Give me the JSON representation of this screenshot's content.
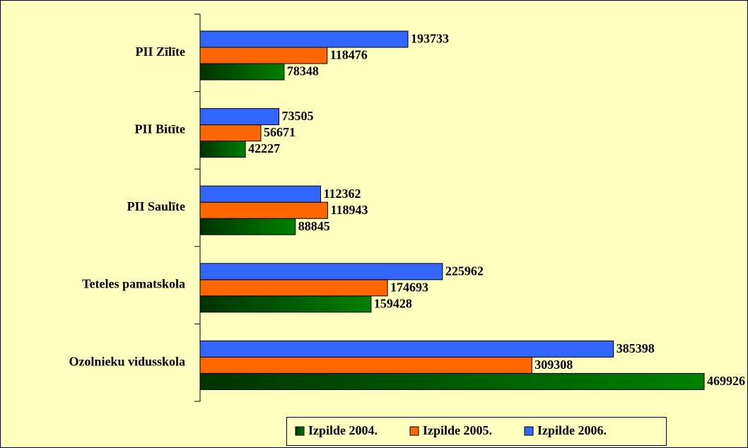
{
  "chart_data": {
    "type": "bar",
    "orientation": "horizontal",
    "categories": [
      "PII Zīlīte",
      "PII Bitīte",
      "PII Saulīte",
      "Teteles pamatskola",
      "Ozolnieku vidusskola"
    ],
    "series": [
      {
        "name": "Izpilde 2004.",
        "color": "#008000",
        "values": [
          78348,
          42227,
          88845,
          159428,
          469926
        ]
      },
      {
        "name": "Izpilde 2005.",
        "color": "#ff6600",
        "values": [
          118476,
          56671,
          118943,
          174693,
          309308
        ]
      },
      {
        "name": "Izpilde 2006.",
        "color": "#3366ff",
        "values": [
          193733,
          73505,
          112362,
          225962,
          385398
        ]
      }
    ],
    "legend": "bottom"
  }
}
